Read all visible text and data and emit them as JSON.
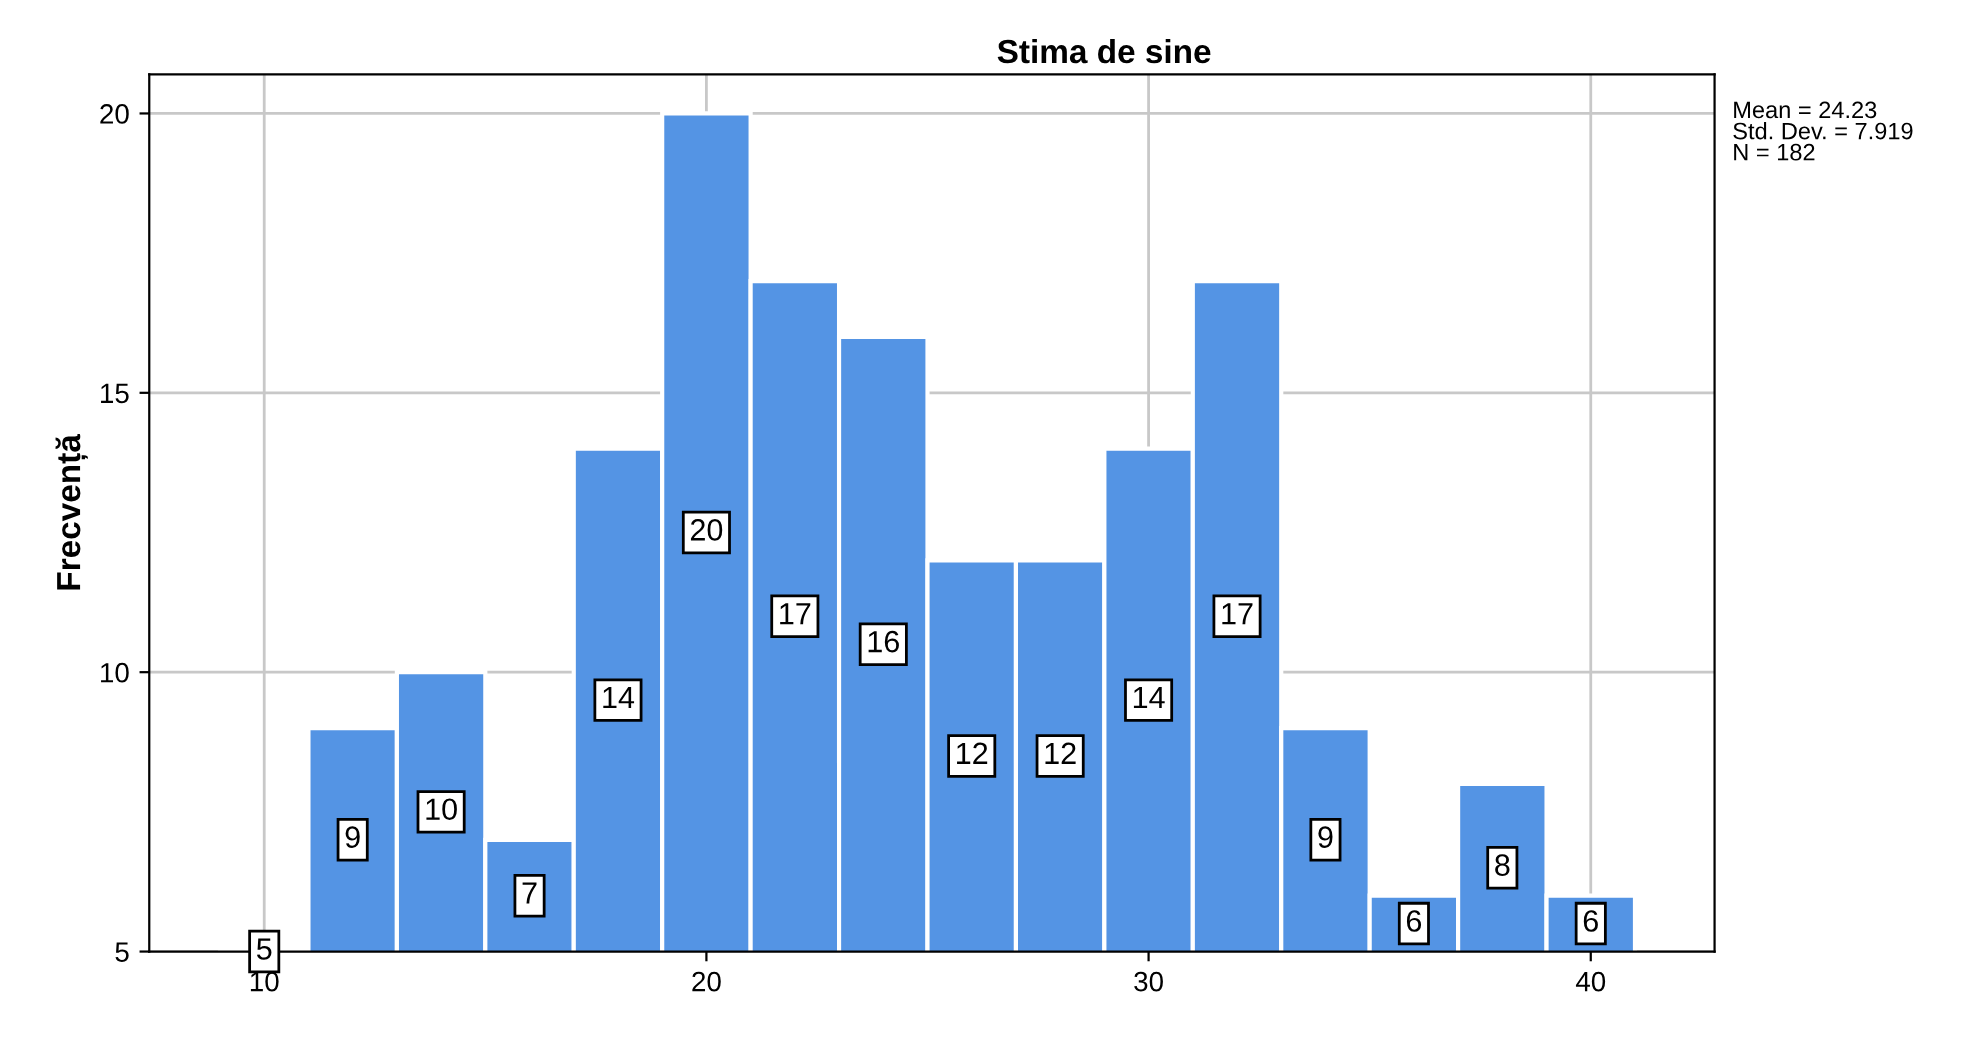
{
  "chart_data": {
    "type": "histogram",
    "title": "Stima de sine",
    "ylabel": "Frecvență",
    "bins": [
      9,
      11,
      13,
      15,
      17,
      19,
      21,
      23,
      25,
      27,
      29,
      31,
      33,
      35,
      37,
      39,
      41
    ],
    "values": [
      5,
      9,
      10,
      7,
      14,
      20,
      17,
      16,
      12,
      12,
      14,
      17,
      9,
      6,
      8,
      6
    ],
    "color": "#5494e4",
    "data_labels": true,
    "xlim": [
      7.4,
      42.8
    ],
    "xticks": [
      10,
      20,
      30,
      40
    ],
    "ylim": [
      5,
      20.7
    ],
    "yticks": [
      5,
      10,
      15,
      20
    ],
    "grid": true,
    "legend": false,
    "annotations": [
      "Mean = 24.23\nStd. Dev. = 7.919\nN = 182"
    ]
  }
}
